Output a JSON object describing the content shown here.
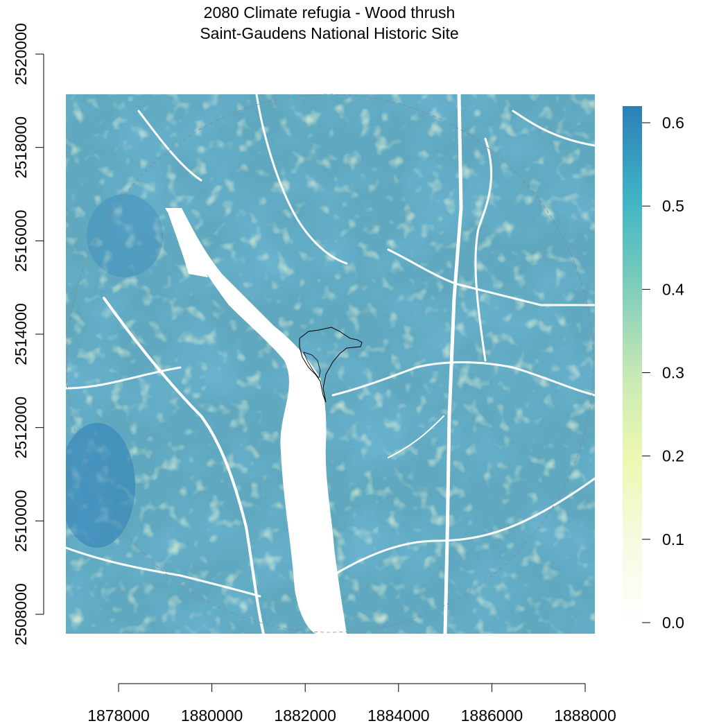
{
  "title": {
    "line1": "2080 Climate refugia - Wood thrush",
    "line2": "Saint-Gaudens National Historic Site"
  },
  "x_axis": {
    "ticks": [
      "1878000",
      "1880000",
      "1882000",
      "1884000",
      "1886000",
      "1888000"
    ]
  },
  "y_axis": {
    "ticks": [
      "2508000",
      "2510000",
      "2512000",
      "2514000",
      "2516000",
      "2518000",
      "2520000"
    ]
  },
  "legend": {
    "ticks": [
      "0.0",
      "0.1",
      "0.2",
      "0.3",
      "0.4",
      "0.5",
      "0.6"
    ],
    "range": [
      0,
      0.62
    ],
    "colors": [
      "#ffffff",
      "#f5fbe0",
      "#edf8b1",
      "#c7e9b4",
      "#7fcdbb",
      "#41b6c4",
      "#2c7fb8"
    ]
  },
  "map": {
    "extent_x": [
      1877000,
      1888000
    ],
    "extent_y": [
      2507600,
      2519200
    ],
    "base_value": 0.48
  }
}
